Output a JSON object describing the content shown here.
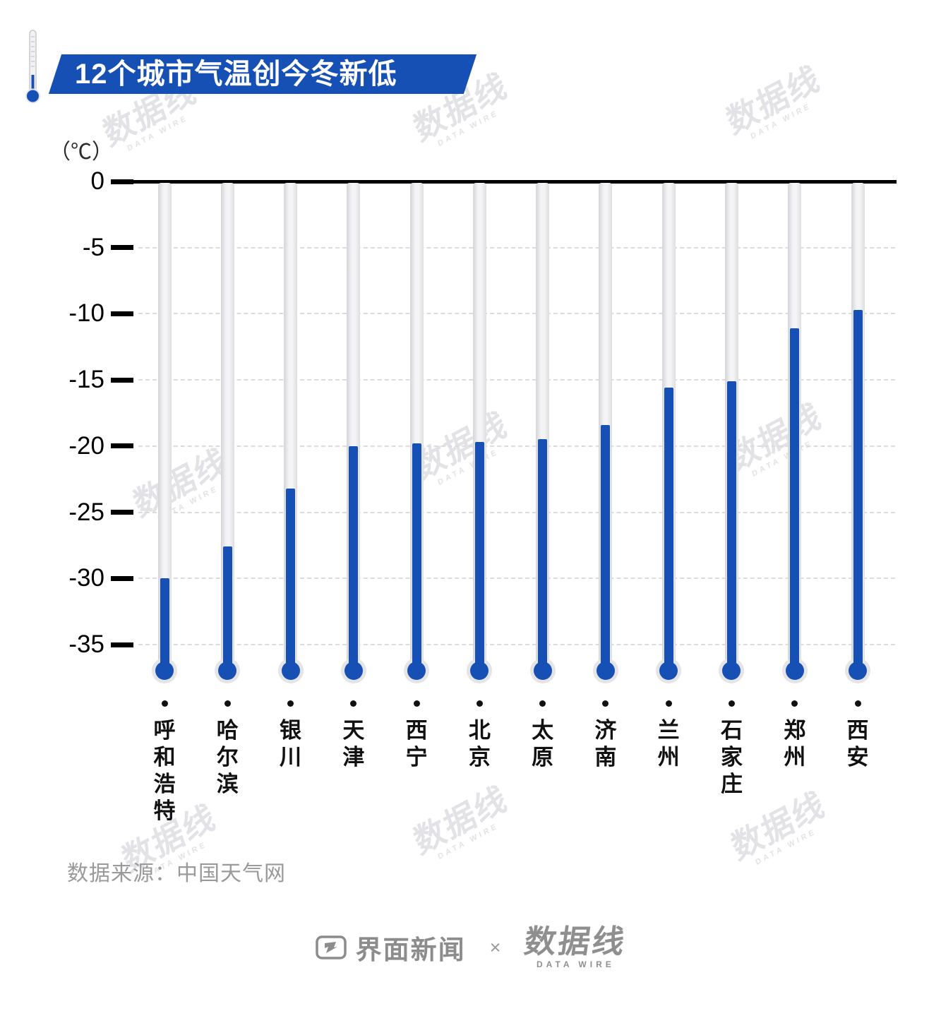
{
  "title": "12个城市气温创今冬新低",
  "unit_label": "（℃）",
  "source": "数据来源：中国天气网",
  "watermark": {
    "text": "数据线",
    "subtext": "DATA WIRE"
  },
  "footer": {
    "brand_left": "界面新闻",
    "separator": "×",
    "brand_right": "数据线",
    "brand_right_sub": "DATA WIRE"
  },
  "colors": {
    "accent_blue": "#1750b4",
    "tube_gray": "#e3e3e7",
    "bulb_ring": "#e4e4e9",
    "grid": "#dcdcdc",
    "axis": "#000000",
    "label_black": "#111111",
    "muted_gray": "#9a9a9a",
    "watermark_gray": "#e3e3e7"
  },
  "chart_data": {
    "type": "bar",
    "title": "12个城市气温创今冬新低",
    "ylabel": "℃",
    "ylim": [
      -37,
      0
    ],
    "grid": "horizontal dashed",
    "legend": "none",
    "yticks": [
      0,
      -5,
      -10,
      -15,
      -20,
      -25,
      -30,
      -35
    ],
    "ytick_labels": [
      "0",
      "-5",
      "-10",
      "-15",
      "-20",
      "-25",
      "-30",
      "-35"
    ],
    "categories": [
      "呼和浩特",
      "哈尔滨",
      "银川",
      "天津",
      "西宁",
      "北京",
      "太原",
      "济南",
      "兰州",
      "石家庄",
      "郑州",
      "西安"
    ],
    "values": [
      -30.0,
      -27.6,
      -23.2,
      -20.0,
      -19.8,
      -19.7,
      -19.5,
      -18.4,
      -15.6,
      -15.1,
      -11.1,
      -9.7
    ]
  }
}
